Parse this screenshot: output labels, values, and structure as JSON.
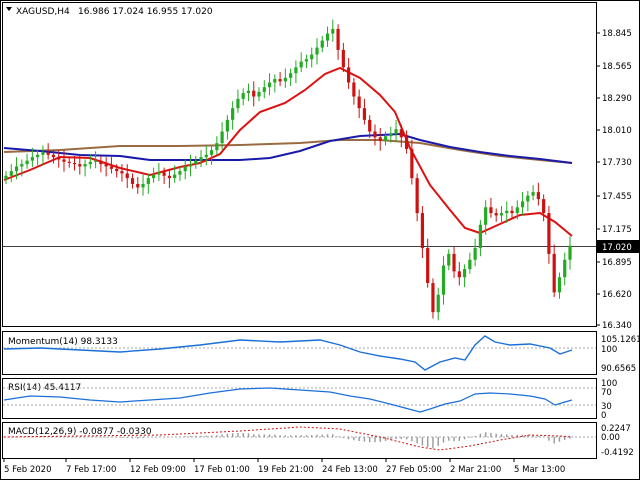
{
  "header": {
    "symbol_tf": "XAGUSD,H4",
    "ohlc": "16.986 17.024 16.955 17.020"
  },
  "main_price_axis": [
    "18.845",
    "18.565",
    "18.290",
    "18.010",
    "17.730",
    "17.455",
    "17.175",
    "16.895",
    "16.620",
    "16.340"
  ],
  "current_price": "17.020",
  "momentum": {
    "label": "Momentum(14) 98.3133",
    "axis": [
      "105.1261",
      "100",
      "90.6565"
    ]
  },
  "rsi": {
    "label": "RSI(14) 45.4117",
    "axis": [
      "100",
      "70",
      "30",
      "0"
    ]
  },
  "macd": {
    "label": "MACD(12,26,9) -0.0877 -0.0330",
    "axis": [
      "0.2247",
      "0.00",
      "-0.4192"
    ]
  },
  "time_axis": [
    "5 Feb 2020",
    "7 Feb 17:00",
    "12 Feb 09:00",
    "17 Feb 01:00",
    "19 Feb 21:00",
    "24 Feb 13:00",
    "27 Feb 05:00",
    "2 Mar 21:00",
    "5 Mar 13:00"
  ],
  "colors": {
    "bull": "#22aa22",
    "bear": "#cc1111",
    "ma_fast": "#dd1111",
    "ma_mid": "#1a1aaa",
    "ma_slow": "#9a6a40",
    "indicator": "#1a6fd8"
  },
  "chart_data": {
    "type": "candlestick",
    "close_series": [
      17.62,
      17.66,
      17.7,
      17.72,
      17.75,
      17.78,
      17.8,
      17.82,
      17.8,
      17.78,
      17.76,
      17.74,
      17.73,
      17.72,
      17.7,
      17.72,
      17.74,
      17.75,
      17.72,
      17.7,
      17.68,
      17.66,
      17.64,
      17.6,
      17.55,
      17.52,
      17.55,
      17.6,
      17.63,
      17.65,
      17.62,
      17.6,
      17.63,
      17.66,
      17.7,
      17.72,
      17.75,
      17.78,
      17.8,
      17.84,
      17.9,
      18.0,
      18.1,
      18.2,
      18.28,
      18.33,
      18.35,
      18.3,
      18.34,
      18.38,
      18.42,
      18.45,
      18.43,
      18.46,
      18.5,
      18.55,
      18.6,
      18.62,
      18.66,
      18.72,
      18.78,
      18.84,
      18.88,
      18.7,
      18.55,
      18.42,
      18.3,
      18.2,
      18.1,
      18.0,
      17.95,
      17.92,
      17.96,
      17.98,
      18.02,
      17.95,
      17.85,
      17.6,
      17.3,
      17.0,
      16.7,
      16.45,
      16.6,
      16.85,
      16.95,
      16.8,
      16.75,
      16.82,
      16.9,
      17.0,
      17.2,
      17.35,
      17.3,
      17.28,
      17.3,
      17.32,
      17.3,
      17.35,
      17.4,
      17.45,
      17.48,
      17.42,
      17.3,
      16.95,
      16.62,
      16.75,
      16.9,
      17.02
    ]
  }
}
